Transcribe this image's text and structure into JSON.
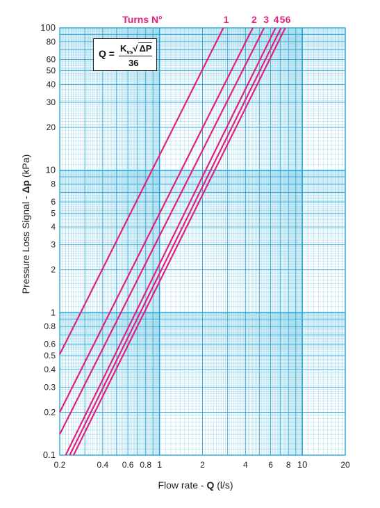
{
  "chart_data": {
    "type": "line",
    "xscale": "log",
    "yscale": "log",
    "xlim": [
      0.2,
      20
    ],
    "ylim": [
      0.1,
      100
    ],
    "grid": true,
    "xlabel_text": "Flow rate - ",
    "xlabel_var": "Q",
    "xlabel_unit": " (l/s)",
    "ylabel_text": "Pressure Loss Signal  - ",
    "ylabel_var": "Δp",
    "ylabel_unit": " (kPa)",
    "x_ticks": [
      0.2,
      0.4,
      0.6,
      0.8,
      1,
      2,
      4,
      6,
      8,
      10,
      20
    ],
    "x_tick_labels": [
      "0.2",
      "0.4",
      "0.6",
      "0.8",
      "1",
      "2",
      "4",
      "6",
      "8",
      "10",
      "20"
    ],
    "y_ticks": [
      0.1,
      0.2,
      0.3,
      0.4,
      0.5,
      0.6,
      0.8,
      1,
      2,
      3,
      4,
      5,
      6,
      8,
      10,
      20,
      30,
      40,
      50,
      60,
      80,
      100
    ],
    "y_tick_labels": [
      "0.1",
      "0.2",
      "0.3",
      "0.4",
      "0.5",
      "0.6",
      "0.8",
      "1",
      "2",
      "3",
      "4",
      "5",
      "6",
      "8",
      "10",
      "20",
      "30",
      "40",
      "50",
      "60",
      "80",
      "100"
    ],
    "legend_title": "Turns N°",
    "series": [
      {
        "name": "1",
        "points": [
          [
            0.2,
            0.51
          ],
          [
            2.8,
            100
          ]
        ]
      },
      {
        "name": "2",
        "points": [
          [
            0.2,
            0.2
          ],
          [
            4.5,
            100
          ]
        ]
      },
      {
        "name": "3",
        "points": [
          [
            0.2,
            0.14
          ],
          [
            5.4,
            100
          ]
        ]
      },
      {
        "name": "4",
        "points": [
          [
            0.22,
            0.1
          ],
          [
            6.5,
            100
          ]
        ]
      },
      {
        "name": "5",
        "points": [
          [
            0.235,
            0.1
          ],
          [
            7.1,
            100
          ]
        ]
      },
      {
        "name": "6",
        "points": [
          [
            0.25,
            0.1
          ],
          [
            7.6,
            100
          ]
        ]
      }
    ],
    "series_color": "#e0207e",
    "grid_color": "#2aa8d6"
  },
  "formula": {
    "lhs": "Q",
    "equals": "=",
    "k": "K",
    "k_sub": "vs",
    "radicand": "ΔP",
    "denominator": "36"
  }
}
